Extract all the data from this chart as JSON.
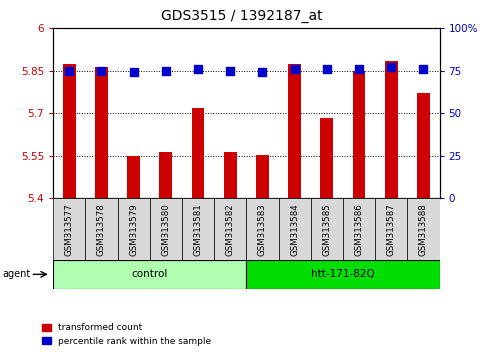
{
  "title": "GDS3515 / 1392187_at",
  "samples": [
    "GSM313577",
    "GSM313578",
    "GSM313579",
    "GSM313580",
    "GSM313581",
    "GSM313582",
    "GSM313583",
    "GSM313584",
    "GSM313585",
    "GSM313586",
    "GSM313587",
    "GSM313588"
  ],
  "red_values": [
    5.875,
    5.865,
    5.548,
    5.565,
    5.72,
    5.565,
    5.553,
    5.875,
    5.685,
    5.848,
    5.885,
    5.77
  ],
  "blue_values": [
    75,
    75,
    74,
    75,
    76,
    75,
    74,
    76,
    76,
    76,
    77,
    76
  ],
  "ylim_left": [
    5.4,
    6.0
  ],
  "ylim_right": [
    0,
    100
  ],
  "yticks_left": [
    5.4,
    5.55,
    5.7,
    5.85,
    6.0
  ],
  "yticks_right": [
    0,
    25,
    50,
    75,
    100
  ],
  "ytick_labels_left": [
    "5.4",
    "5.55",
    "5.7",
    "5.85",
    "6"
  ],
  "ytick_labels_right": [
    "0",
    "25",
    "50",
    "75",
    "100%"
  ],
  "groups": [
    {
      "label": "control",
      "indices": [
        0,
        1,
        2,
        3,
        4,
        5
      ],
      "color": "#b0ffb0"
    },
    {
      "label": "htt-171-82Q",
      "indices": [
        6,
        7,
        8,
        9,
        10,
        11
      ],
      "color": "#00dd00"
    }
  ],
  "agent_label": "agent",
  "red_color": "#cc0000",
  "blue_color": "#0000cc",
  "bar_width": 0.4,
  "dot_size": 28,
  "grid_color": "black",
  "plot_bg": "white",
  "ylabel_left_color": "#cc0000",
  "ylabel_right_color": "#0000cc",
  "legend_red_label": "transformed count",
  "legend_blue_label": "percentile rank within the sample",
  "title_fontsize": 10,
  "tick_fontsize": 7.5,
  "label_fontsize": 7.5
}
